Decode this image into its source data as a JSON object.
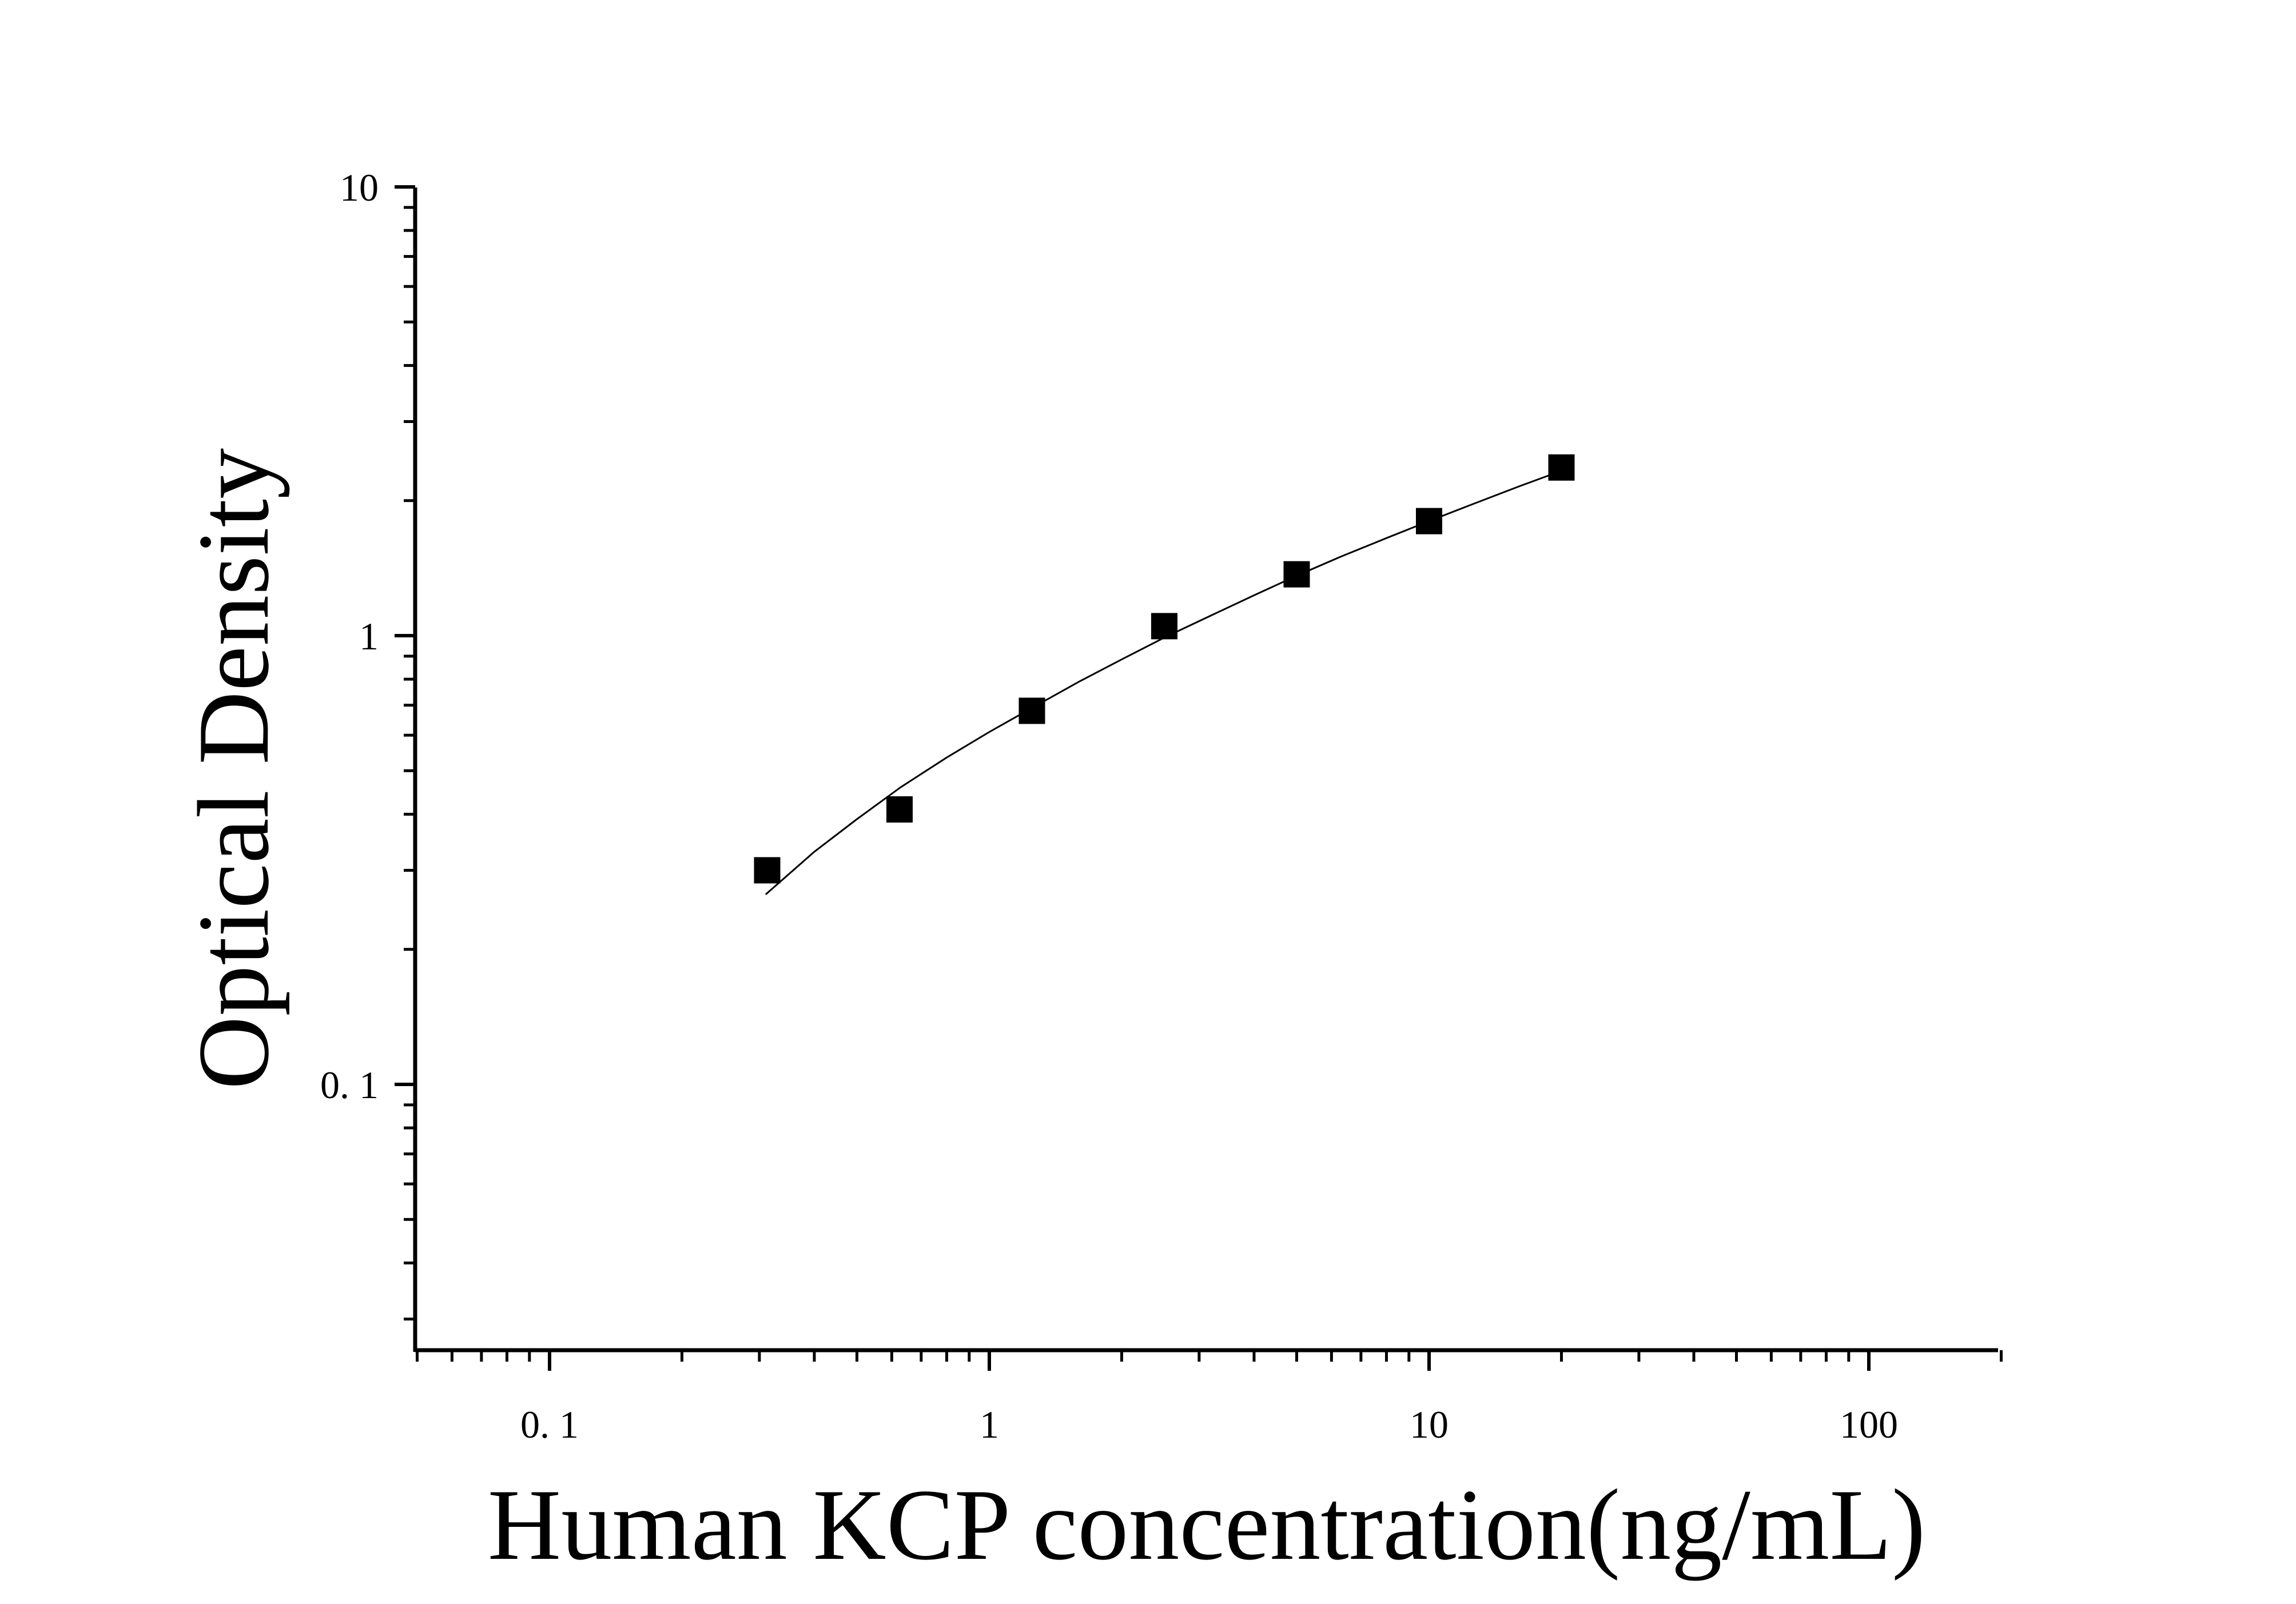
{
  "chart_data": {
    "type": "scatter",
    "title": "",
    "xlabel": "Human KCP concentration(ng/mL)",
    "ylabel": "Optical Density",
    "x_scale": "log",
    "y_scale": "log",
    "xlim": [
      0.05,
      200
    ],
    "ylim": [
      0.025,
      10
    ],
    "x_ticks": [
      {
        "value": 0.1,
        "label": "0. 1"
      },
      {
        "value": 1,
        "label": "1"
      },
      {
        "value": 10,
        "label": "10"
      },
      {
        "value": 100,
        "label": "100"
      }
    ],
    "y_ticks": [
      {
        "value": 0.1,
        "label": "0. 1"
      },
      {
        "value": 1,
        "label": "1"
      },
      {
        "value": 10,
        "label": "10"
      }
    ],
    "grid": false,
    "legend": "none",
    "series": [
      {
        "marker": "square",
        "color": "#000000",
        "x": [
          0.3125,
          0.625,
          1.25,
          2.5,
          5,
          10,
          20
        ],
        "y": [
          0.3,
          0.41,
          0.68,
          1.05,
          1.37,
          1.8,
          2.37
        ]
      }
    ],
    "fit_curve": {
      "color": "#000000",
      "x": [
        0.31,
        0.4,
        0.5,
        0.63,
        0.8,
        1.0,
        1.25,
        1.6,
        2.0,
        2.5,
        3.2,
        4.0,
        5.0,
        6.3,
        8.0,
        10.0,
        12.5,
        16.0,
        20.0
      ],
      "y": [
        0.265,
        0.33,
        0.39,
        0.46,
        0.535,
        0.61,
        0.69,
        0.79,
        0.885,
        0.99,
        1.11,
        1.23,
        1.36,
        1.5,
        1.65,
        1.8,
        1.96,
        2.15,
        2.33
      ]
    }
  }
}
